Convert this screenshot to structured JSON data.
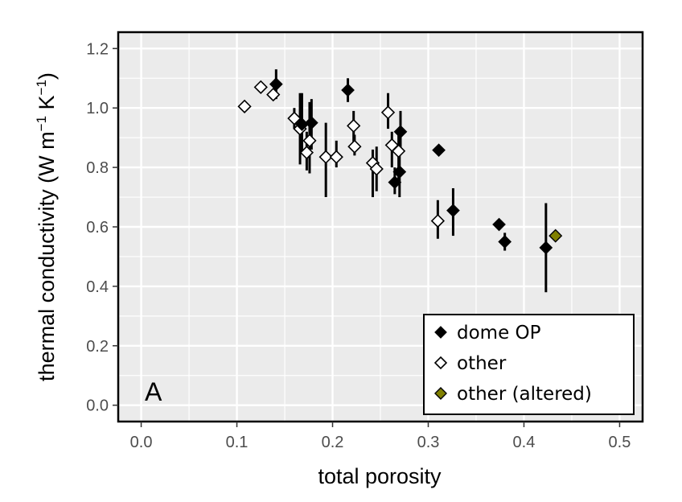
{
  "chart_data": {
    "type": "scatter",
    "panel_label": "A",
    "xlabel": "total porosity",
    "ylabel": {
      "main": "thermal conductivity (W m",
      "exp1": "−1",
      "mid": " K",
      "exp2": "−1",
      "end": ")"
    },
    "xlim": [
      -0.024,
      0.524
    ],
    "ylim": [
      -0.055,
      1.255
    ],
    "x_ticks": [
      0.0,
      0.1,
      0.2,
      0.3,
      0.4,
      0.5
    ],
    "x_tick_labels": [
      "0.0",
      "0.1",
      "0.2",
      "0.3",
      "0.4",
      "0.5"
    ],
    "y_ticks": [
      0.0,
      0.2,
      0.4,
      0.6,
      0.8,
      1.0,
      1.2
    ],
    "y_tick_labels": [
      "0.0",
      "0.2",
      "0.4",
      "0.6",
      "0.8",
      "1.0",
      "1.2"
    ],
    "grid": true,
    "legend_position": "bottom-right",
    "series": [
      {
        "name": "dome OP",
        "color": "#000000",
        "marker": "filled-diamond",
        "points": [
          {
            "x": 0.141,
            "y": 1.08,
            "lo": 1.03,
            "hi": 1.13
          },
          {
            "x": 0.168,
            "y": 0.945,
            "lo": 0.85,
            "hi": 1.05
          },
          {
            "x": 0.178,
            "y": 0.95,
            "lo": 0.86,
            "hi": 1.03
          },
          {
            "x": 0.216,
            "y": 1.06,
            "lo": 1.02,
            "hi": 1.1
          },
          {
            "x": 0.271,
            "y": 0.92,
            "lo": 0.85,
            "hi": 0.99
          },
          {
            "x": 0.311,
            "y": 0.858,
            "lo": 0.85,
            "hi": 0.87
          },
          {
            "x": 0.265,
            "y": 0.75,
            "lo": 0.71,
            "hi": 0.8
          },
          {
            "x": 0.27,
            "y": 0.785,
            "lo": 0.7,
            "hi": 0.86
          },
          {
            "x": 0.326,
            "y": 0.655,
            "lo": 0.57,
            "hi": 0.73
          },
          {
            "x": 0.374,
            "y": 0.608,
            "lo": 0.59,
            "hi": 0.62
          },
          {
            "x": 0.38,
            "y": 0.55,
            "lo": 0.52,
            "hi": 0.58
          },
          {
            "x": 0.423,
            "y": 0.53,
            "lo": 0.38,
            "hi": 0.68
          }
        ]
      },
      {
        "name": "other",
        "color": "#ffffff",
        "marker": "open-diamond",
        "points": [
          {
            "x": 0.108,
            "y": 1.005,
            "lo": 1.005,
            "hi": 1.005
          },
          {
            "x": 0.125,
            "y": 1.07,
            "lo": 1.07,
            "hi": 1.07
          },
          {
            "x": 0.138,
            "y": 1.045,
            "lo": 1.045,
            "hi": 1.045
          },
          {
            "x": 0.16,
            "y": 0.965,
            "lo": 0.93,
            "hi": 1.0
          },
          {
            "x": 0.166,
            "y": 0.93,
            "lo": 0.81,
            "hi": 1.05
          },
          {
            "x": 0.173,
            "y": 0.85,
            "lo": 0.79,
            "hi": 0.92
          },
          {
            "x": 0.176,
            "y": 0.89,
            "lo": 0.78,
            "hi": 1.02
          },
          {
            "x": 0.193,
            "y": 0.835,
            "lo": 0.7,
            "hi": 0.95
          },
          {
            "x": 0.204,
            "y": 0.835,
            "lo": 0.8,
            "hi": 0.89
          },
          {
            "x": 0.222,
            "y": 0.94,
            "lo": 0.87,
            "hi": 0.99
          },
          {
            "x": 0.223,
            "y": 0.87,
            "lo": 0.84,
            "hi": 0.91
          },
          {
            "x": 0.242,
            "y": 0.815,
            "lo": 0.7,
            "hi": 0.86
          },
          {
            "x": 0.246,
            "y": 0.795,
            "lo": 0.72,
            "hi": 0.87
          },
          {
            "x": 0.258,
            "y": 0.985,
            "lo": 0.93,
            "hi": 1.05
          },
          {
            "x": 0.262,
            "y": 0.875,
            "lo": 0.8,
            "hi": 0.92
          },
          {
            "x": 0.269,
            "y": 0.855,
            "lo": 0.76,
            "hi": 0.92
          },
          {
            "x": 0.31,
            "y": 0.62,
            "lo": 0.56,
            "hi": 0.69
          }
        ]
      },
      {
        "name": "other (altered)",
        "color": "#808000",
        "marker": "filled-diamond-outlined",
        "points": [
          {
            "x": 0.433,
            "y": 0.57,
            "lo": 0.57,
            "hi": 0.57
          }
        ]
      }
    ]
  }
}
